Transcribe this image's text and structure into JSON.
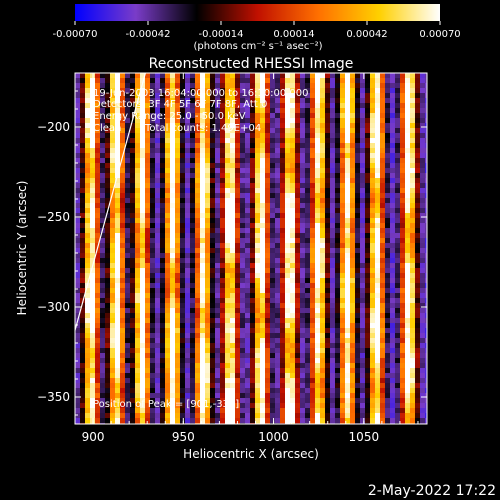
{
  "chart_data": {
    "type": "heatmap",
    "title": "Reconstructed RHESSI Image",
    "xlabel": "Heliocentric X (arcsec)",
    "ylabel": "Heliocentric Y (arcsec)",
    "xlim": [
      890,
      1085
    ],
    "ylim": [
      -365,
      -170
    ],
    "x_ticks": [
      900,
      950,
      1000,
      1050
    ],
    "y_ticks": [
      -350,
      -300,
      -250,
      -200
    ],
    "colorbar": {
      "min": -0.0007,
      "max": 0.0007,
      "ticks": [
        "-0.00070",
        "-0.00042",
        "-0.00014",
        "0.00014",
        "0.00042",
        "0.00070"
      ],
      "units": "(photons cm⁻² s⁻¹ asec⁻²)",
      "colors": [
        "#0000ff",
        "#7a3cc8",
        "#000000",
        "#c01000",
        "#ff7000",
        "#ffd000",
        "#ffffff"
      ]
    },
    "annotations": {
      "time_range": "19-Jun-2003 16:04:00.000 to 16:10:00.000",
      "detectors": "Detectors: 3F 4F 5F 6F 7F 8F, Att 0",
      "energy": "Energy Range: 25.0 - 50.0 keV",
      "method": "Clean",
      "counts": "Total counts: 1.49E+04",
      "peak": "Position of Peak = [901,-333]"
    },
    "limb_line": [
      [
        890,
        -313
      ],
      [
        929,
        -170
      ]
    ],
    "stripe_centers_x": [
      899,
      913,
      927,
      944,
      961,
      976,
      993,
      1009,
      1025,
      1041,
      1057,
      1075
    ],
    "stripe_peak_value": 0.0007
  },
  "timestamp": "2-May-2022 17:22"
}
